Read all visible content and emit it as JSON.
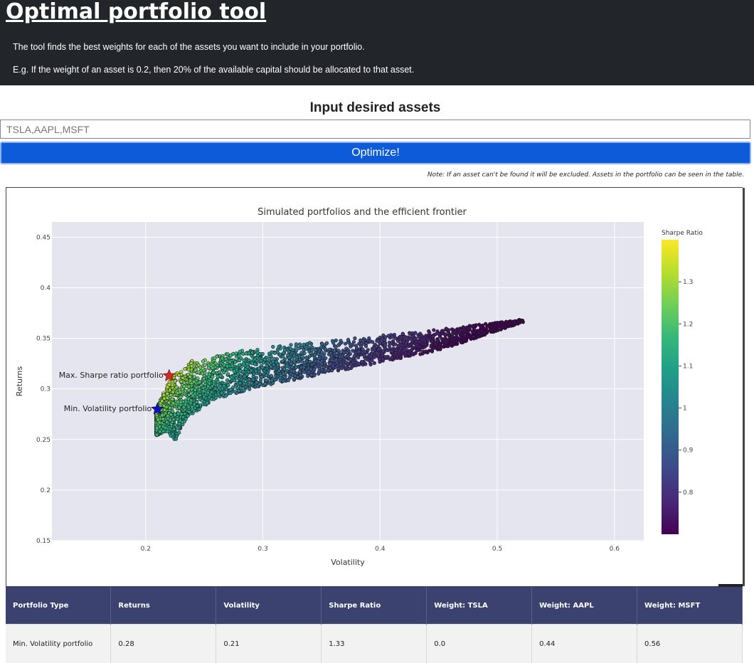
{
  "header": {
    "title": "Optimal portfolio tool",
    "line1": "The tool finds the best weights for each of the assets you want to include in your portfolio.",
    "line2": "E.g. If the weight of an asset is 0.2, then 20% of the available capital should be allocated to that asset."
  },
  "form": {
    "title": "Input desired assets",
    "placeholder": "TSLA,AAPL,MSFT",
    "button_label": "Optimize!",
    "note": "Note: If an asset can't be found it will be excluded. Assets in the portfolio can be seen in the table."
  },
  "chart_data": {
    "type": "scatter",
    "title": "Simulated portfolios and the efficient frontier",
    "xlabel": "Volatility",
    "ylabel": "Returns",
    "xlim": [
      0.12,
      0.625
    ],
    "ylim": [
      0.15,
      0.465
    ],
    "x_ticks": [
      "0.2",
      "0.3",
      "0.4",
      "0.5",
      "0.6"
    ],
    "x_tick_values": [
      0.2,
      0.3,
      0.4,
      0.5,
      0.6
    ],
    "y_ticks": [
      "0.15",
      "0.2",
      "0.25",
      "0.3",
      "0.35",
      "0.4",
      "0.45"
    ],
    "y_tick_values": [
      0.15,
      0.2,
      0.25,
      0.3,
      0.35,
      0.4,
      0.45
    ],
    "colorbar": {
      "title": "Sharpe Ratio",
      "range": [
        0.7,
        1.4
      ],
      "ticks": [
        "0.8",
        "0.9",
        "1",
        "1.1",
        "1.2",
        "1.3"
      ],
      "tick_values": [
        0.8,
        0.9,
        1.0,
        1.1,
        1.2,
        1.3
      ],
      "colorscale": [
        "#440154",
        "#482878",
        "#3e4989",
        "#31688e",
        "#26828e",
        "#1f9e89",
        "#35b779",
        "#6ece58",
        "#b5de2b",
        "#fde725"
      ]
    },
    "annotations": [
      {
        "label": "Max. Sharpe ratio portfolio",
        "x": 0.22,
        "y": 0.313,
        "color": "#d62728"
      },
      {
        "label": "Min. Volatility portfolio",
        "x": 0.21,
        "y": 0.28,
        "color": "#1010c0"
      }
    ],
    "cloud": {
      "frontier": [
        [
          0.225,
          0.248
        ],
        [
          0.21,
          0.27
        ],
        [
          0.21,
          0.28
        ],
        [
          0.215,
          0.298
        ],
        [
          0.222,
          0.314
        ],
        [
          0.24,
          0.328
        ],
        [
          0.27,
          0.336
        ],
        [
          0.31,
          0.342
        ],
        [
          0.36,
          0.348
        ],
        [
          0.41,
          0.354
        ],
        [
          0.46,
          0.36
        ],
        [
          0.52,
          0.369
        ]
      ],
      "lower": [
        [
          0.225,
          0.248
        ],
        [
          0.235,
          0.272
        ],
        [
          0.26,
          0.29
        ],
        [
          0.3,
          0.303
        ],
        [
          0.35,
          0.314
        ],
        [
          0.4,
          0.326
        ],
        [
          0.45,
          0.338
        ],
        [
          0.52,
          0.362
        ]
      ]
    }
  },
  "table": {
    "headers": [
      "Portfolio Type",
      "Returns",
      "Volatility",
      "Sharpe Ratio",
      "Weight: TSLA",
      "Weight: AAPL",
      "Weight: MSFT"
    ],
    "rows": [
      [
        "Min. Volatility portfolio",
        "0.28",
        "0.21",
        "1.33",
        "0.0",
        "0.44",
        "0.56"
      ]
    ]
  }
}
